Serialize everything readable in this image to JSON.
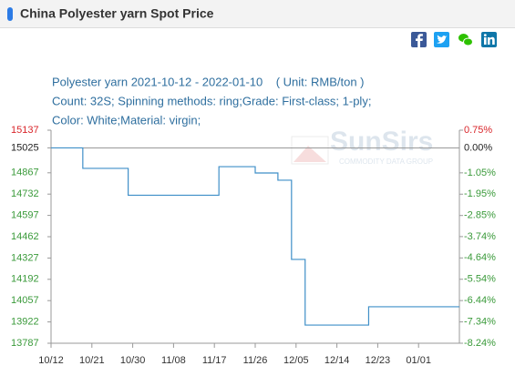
{
  "header": {
    "title": "China Polyester yarn Spot Price"
  },
  "chart_data": {
    "type": "line",
    "step": true,
    "title_lines": [
      "Polyester yarn 2021-10-12 - 2022-01-10    ( Unit: RMB/ton )",
      "Count: 32S; Spinning methods: ring;Grade: First-class; 1-ply;",
      "Color: White;Material: virgin;"
    ],
    "watermark": [
      "SunSirs",
      "COMMODITY DATA GROUP"
    ],
    "x": [
      "10/12",
      "10/19",
      "10/29",
      "11/18",
      "11/26",
      "12/01",
      "12/04",
      "12/07",
      "12/21",
      "01/10"
    ],
    "values": [
      15025,
      14895,
      14725,
      14906,
      14866,
      14820,
      14318,
      13902,
      14018,
      14018
    ],
    "color": "#3f8fc8",
    "xlim": [
      "10/12",
      "01/10"
    ],
    "xticks": [
      "10/12",
      "10/21",
      "10/30",
      "11/08",
      "11/17",
      "11/26",
      "12/05",
      "12/14",
      "12/23",
      "01/01"
    ],
    "ylim": [
      13787,
      15137
    ],
    "yticks": [
      15137,
      15025,
      14867,
      14732,
      14597,
      14462,
      14327,
      14192,
      14057,
      13922,
      13787
    ],
    "y2lim": [
      -8.24,
      0.75
    ],
    "y2ticks": [
      {
        "value": 0.75,
        "label": "0.75%"
      },
      {
        "value": 0,
        "label": "0.00%"
      },
      {
        "value": -1.05,
        "label": "-1.05%"
      },
      {
        "value": -1.95,
        "label": "-1.95%"
      },
      {
        "value": -2.85,
        "label": "-2.85%"
      },
      {
        "value": -3.74,
        "label": "-3.74%"
      },
      {
        "value": -4.64,
        "label": "-4.64%"
      },
      {
        "value": -5.54,
        "label": "-5.54%"
      },
      {
        "value": -6.44,
        "label": "-6.44%"
      },
      {
        "value": -7.34,
        "label": "-7.34%"
      },
      {
        "value": -8.24,
        "label": "-8.24%"
      }
    ],
    "base": 15025,
    "up_color": "#d9262b",
    "down_color": "#3a9a3a",
    "base_color": "#222222"
  }
}
